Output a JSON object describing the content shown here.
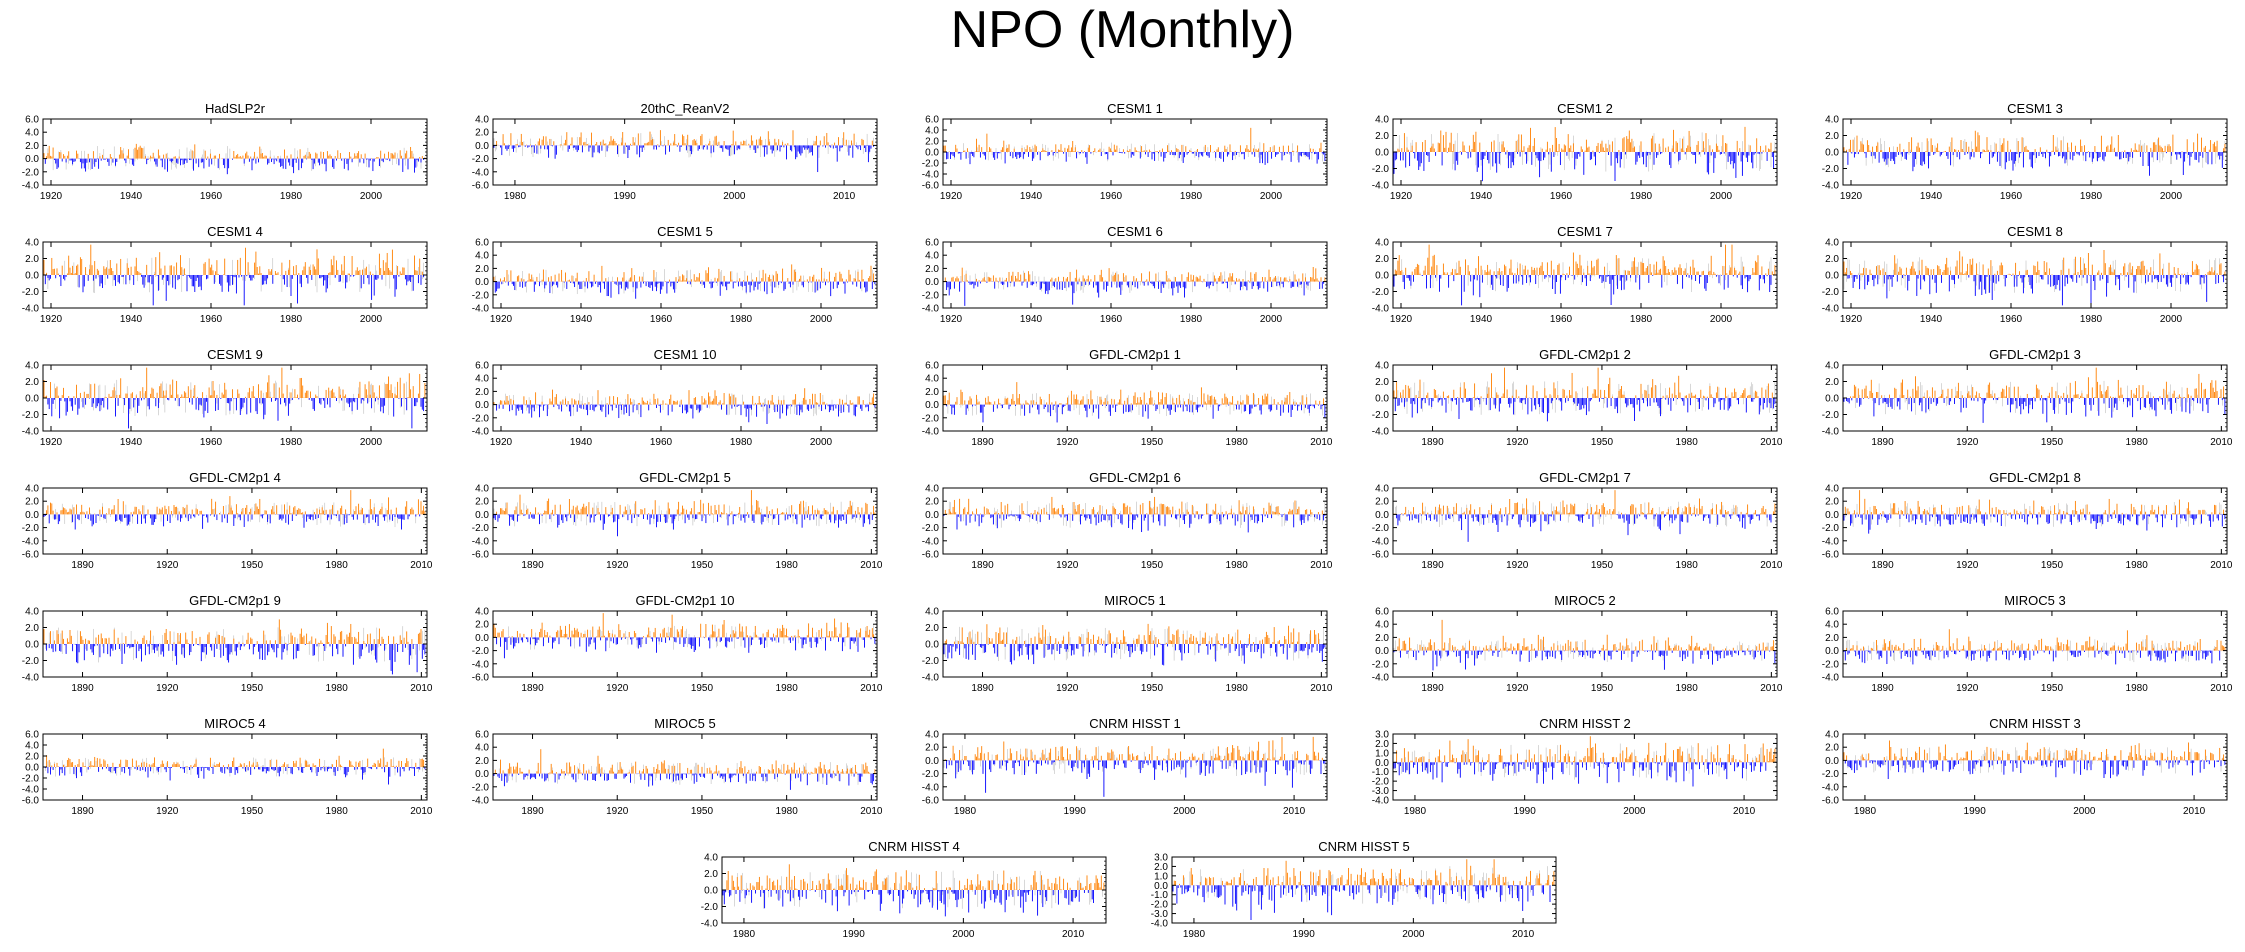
{
  "title": "NPO (Monthly)",
  "colors": {
    "positive": "#ff8000",
    "negative": "#0000ff",
    "noise": "#b0b0b0",
    "axis": "#000000"
  },
  "chart_data": [
    {
      "type": "bar",
      "title": "HadSLP2r",
      "ylim": [
        -4,
        6
      ],
      "yticks": [
        "6.0",
        "4.0",
        "2.0",
        "0.0",
        "-2.0",
        "-4.0"
      ],
      "xlim": [
        1918,
        2014
      ],
      "xticks": [
        1920,
        1940,
        1960,
        1980,
        2000
      ],
      "seed": 1,
      "amp": 1.2
    },
    {
      "type": "bar",
      "title": "20thC_ReanV2",
      "ylim": [
        -6,
        4
      ],
      "yticks": [
        "4.0",
        "2.0",
        "0.0",
        "-2.0",
        "-4.0",
        "-6.0"
      ],
      "xlim": [
        1978,
        2013
      ],
      "xticks": [
        1980,
        1990,
        2000,
        2010
      ],
      "seed": 2,
      "amp": 1.2
    },
    {
      "type": "bar",
      "title": "CESM1 1",
      "ylim": [
        -6,
        6
      ],
      "yticks": [
        "6.0",
        "4.0",
        "2.0",
        "0.0",
        "-2.0",
        "-4.0",
        "-6.0"
      ],
      "xlim": [
        1918,
        2014
      ],
      "xticks": [
        1920,
        1940,
        1960,
        1980,
        2000
      ],
      "seed": 3,
      "amp": 1.1
    },
    {
      "type": "bar",
      "title": "CESM1 2",
      "ylim": [
        -4,
        4
      ],
      "yticks": [
        "4.0",
        "2.0",
        "0.0",
        "-2.0",
        "-4.0"
      ],
      "xlim": [
        1918,
        2014
      ],
      "xticks": [
        1920,
        1940,
        1960,
        1980,
        2000
      ],
      "seed": 4,
      "amp": 1.5
    },
    {
      "type": "bar",
      "title": "CESM1 3",
      "ylim": [
        -4,
        4
      ],
      "yticks": [
        "4.0",
        "2.0",
        "0.0",
        "-2.0",
        "-4.0"
      ],
      "xlim": [
        1918,
        2014
      ],
      "xticks": [
        1920,
        1940,
        1960,
        1980,
        2000
      ],
      "seed": 5,
      "amp": 1.2
    },
    {
      "type": "bar",
      "title": "CESM1 4",
      "ylim": [
        -4,
        4
      ],
      "yticks": [
        "4.0",
        "2.0",
        "0.0",
        "-2.0",
        "-4.0"
      ],
      "xlim": [
        1918,
        2014
      ],
      "xticks": [
        1920,
        1940,
        1960,
        1980,
        2000
      ],
      "seed": 6,
      "amp": 1.4
    },
    {
      "type": "bar",
      "title": "CESM1 5",
      "ylim": [
        -4,
        6
      ],
      "yticks": [
        "6.0",
        "4.0",
        "2.0",
        "0.0",
        "-2.0",
        "-4.0"
      ],
      "xlim": [
        1918,
        2014
      ],
      "xticks": [
        1920,
        1940,
        1960,
        1980,
        2000
      ],
      "seed": 7,
      "amp": 1.2
    },
    {
      "type": "bar",
      "title": "CESM1 6",
      "ylim": [
        -4,
        6
      ],
      "yticks": [
        "6.0",
        "4.0",
        "2.0",
        "0.0",
        "-2.0",
        "-4.0"
      ],
      "xlim": [
        1918,
        2014
      ],
      "xticks": [
        1920,
        1940,
        1960,
        1980,
        2000
      ],
      "seed": 8,
      "amp": 1.1
    },
    {
      "type": "bar",
      "title": "CESM1 7",
      "ylim": [
        -4,
        4
      ],
      "yticks": [
        "4.0",
        "2.0",
        "0.0",
        "-2.0",
        "-4.0"
      ],
      "xlim": [
        1918,
        2014
      ],
      "xticks": [
        1920,
        1940,
        1960,
        1980,
        2000
      ],
      "seed": 9,
      "amp": 1.4
    },
    {
      "type": "bar",
      "title": "CESM1 8",
      "ylim": [
        -4,
        4
      ],
      "yticks": [
        "4.0",
        "2.0",
        "0.0",
        "-2.0",
        "-4.0"
      ],
      "xlim": [
        1918,
        2014
      ],
      "xticks": [
        1920,
        1940,
        1960,
        1980,
        2000
      ],
      "seed": 10,
      "amp": 1.4
    },
    {
      "type": "bar",
      "title": "CESM1 9",
      "ylim": [
        -4,
        4
      ],
      "yticks": [
        "4.0",
        "2.0",
        "0.0",
        "-2.0",
        "-4.0"
      ],
      "xlim": [
        1918,
        2014
      ],
      "xticks": [
        1920,
        1940,
        1960,
        1980,
        2000
      ],
      "seed": 11,
      "amp": 1.4
    },
    {
      "type": "bar",
      "title": "CESM1 10",
      "ylim": [
        -4,
        6
      ],
      "yticks": [
        "6.0",
        "4.0",
        "2.0",
        "0.0",
        "-2.0",
        "-4.0"
      ],
      "xlim": [
        1918,
        2014
      ],
      "xticks": [
        1920,
        1940,
        1960,
        1980,
        2000
      ],
      "seed": 12,
      "amp": 1.1
    },
    {
      "type": "bar",
      "title": "GFDL-CM2p1 1",
      "ylim": [
        -4,
        6
      ],
      "yticks": [
        "6.0",
        "4.0",
        "2.0",
        "0.0",
        "-2.0",
        "-4.0"
      ],
      "xlim": [
        1876,
        2012
      ],
      "xticks": [
        1890,
        1920,
        1950,
        1980,
        2010
      ],
      "seed": 13,
      "amp": 1.1
    },
    {
      "type": "bar",
      "title": "GFDL-CM2p1 2",
      "ylim": [
        -4,
        4
      ],
      "yticks": [
        "4.0",
        "2.0",
        "0.0",
        "-2.0",
        "-4.0"
      ],
      "xlim": [
        1876,
        2012
      ],
      "xticks": [
        1890,
        1920,
        1950,
        1980,
        2010
      ],
      "seed": 14,
      "amp": 1.3
    },
    {
      "type": "bar",
      "title": "GFDL-CM2p1 3",
      "ylim": [
        -4,
        4
      ],
      "yticks": [
        "4.0",
        "2.0",
        "0.0",
        "-2.0",
        "-4.0"
      ],
      "xlim": [
        1876,
        2012
      ],
      "xticks": [
        1890,
        1920,
        1950,
        1980,
        2010
      ],
      "seed": 15,
      "amp": 1.3
    },
    {
      "type": "bar",
      "title": "GFDL-CM2p1 4",
      "ylim": [
        -6,
        4
      ],
      "yticks": [
        "4.0",
        "2.0",
        "0.0",
        "-2.0",
        "-4.0",
        "-6.0"
      ],
      "xlim": [
        1876,
        2012
      ],
      "xticks": [
        1890,
        1920,
        1950,
        1980,
        2010
      ],
      "seed": 16,
      "amp": 1.2
    },
    {
      "type": "bar",
      "title": "GFDL-CM2p1 5",
      "ylim": [
        -6,
        4
      ],
      "yticks": [
        "4.0",
        "2.0",
        "0.0",
        "-2.0",
        "-4.0",
        "-6.0"
      ],
      "xlim": [
        1876,
        2012
      ],
      "xticks": [
        1890,
        1920,
        1950,
        1980,
        2010
      ],
      "seed": 17,
      "amp": 1.2
    },
    {
      "type": "bar",
      "title": "GFDL-CM2p1 6",
      "ylim": [
        -6,
        4
      ],
      "yticks": [
        "4.0",
        "2.0",
        "0.0",
        "-2.0",
        "-4.0",
        "-6.0"
      ],
      "xlim": [
        1876,
        2012
      ],
      "xticks": [
        1890,
        1920,
        1950,
        1980,
        2010
      ],
      "seed": 18,
      "amp": 1.3
    },
    {
      "type": "bar",
      "title": "GFDL-CM2p1 7",
      "ylim": [
        -6,
        4
      ],
      "yticks": [
        "4.0",
        "2.0",
        "0.0",
        "-2.0",
        "-4.0",
        "-6.0"
      ],
      "xlim": [
        1876,
        2012
      ],
      "xticks": [
        1890,
        1920,
        1950,
        1980,
        2010
      ],
      "seed": 19,
      "amp": 1.2
    },
    {
      "type": "bar",
      "title": "GFDL-CM2p1 8",
      "ylim": [
        -6,
        4
      ],
      "yticks": [
        "4.0",
        "2.0",
        "0.0",
        "-2.0",
        "-4.0",
        "-6.0"
      ],
      "xlim": [
        1876,
        2012
      ],
      "xticks": [
        1890,
        1920,
        1950,
        1980,
        2010
      ],
      "seed": 20,
      "amp": 1.2
    },
    {
      "type": "bar",
      "title": "GFDL-CM2p1 9",
      "ylim": [
        -4,
        4
      ],
      "yticks": [
        "4.0",
        "2.0",
        "0.0",
        "-2.0",
        "-4.0"
      ],
      "xlim": [
        1876,
        2012
      ],
      "xticks": [
        1890,
        1920,
        1950,
        1980,
        2010
      ],
      "seed": 21,
      "amp": 1.4
    },
    {
      "type": "bar",
      "title": "GFDL-CM2p1 10",
      "ylim": [
        -6,
        4
      ],
      "yticks": [
        "4.0",
        "2.0",
        "0.0",
        "-2.0",
        "-4.0",
        "-6.0"
      ],
      "xlim": [
        1876,
        2012
      ],
      "xticks": [
        1890,
        1920,
        1950,
        1980,
        2010
      ],
      "seed": 22,
      "amp": 1.2
    },
    {
      "type": "bar",
      "title": "MIROC5 1",
      "ylim": [
        -4,
        4
      ],
      "yticks": [
        "4.0",
        "2.0",
        "0.0",
        "-2.0",
        "-4.0"
      ],
      "xlim": [
        1876,
        2012
      ],
      "xticks": [
        1890,
        1920,
        1950,
        1980,
        2010
      ],
      "seed": 23,
      "amp": 1.3
    },
    {
      "type": "bar",
      "title": "MIROC5 2",
      "ylim": [
        -4,
        6
      ],
      "yticks": [
        "6.0",
        "4.0",
        "2.0",
        "0.0",
        "-2.0",
        "-4.0"
      ],
      "xlim": [
        1876,
        2012
      ],
      "xticks": [
        1890,
        1920,
        1950,
        1980,
        2010
      ],
      "seed": 24,
      "amp": 1.1
    },
    {
      "type": "bar",
      "title": "MIROC5 3",
      "ylim": [
        -4,
        6
      ],
      "yticks": [
        "6.0",
        "4.0",
        "2.0",
        "0.0",
        "-2.0",
        "-4.0"
      ],
      "xlim": [
        1876,
        2012
      ],
      "xticks": [
        1890,
        1920,
        1950,
        1980,
        2010
      ],
      "seed": 25,
      "amp": 1.1
    },
    {
      "type": "bar",
      "title": "MIROC5 4",
      "ylim": [
        -6,
        6
      ],
      "yticks": [
        "6.0",
        "4.0",
        "2.0",
        "0.0",
        "-2.0",
        "-4.0",
        "-6.0"
      ],
      "xlim": [
        1876,
        2012
      ],
      "xticks": [
        1890,
        1920,
        1950,
        1980,
        2010
      ],
      "seed": 26,
      "amp": 1.1
    },
    {
      "type": "bar",
      "title": "MIROC5 5",
      "ylim": [
        -4,
        6
      ],
      "yticks": [
        "6.0",
        "4.0",
        "2.0",
        "0.0",
        "-2.0",
        "-4.0"
      ],
      "xlim": [
        1876,
        2012
      ],
      "xticks": [
        1890,
        1920,
        1950,
        1980,
        2010
      ],
      "seed": 27,
      "amp": 1.1
    },
    {
      "type": "bar",
      "title": "CNRM HISST 1",
      "ylim": [
        -6,
        4
      ],
      "yticks": [
        "4.0",
        "2.0",
        "0.0",
        "-2.0",
        "-4.0",
        "-6.0"
      ],
      "xlim": [
        1978,
        2013
      ],
      "xticks": [
        1980,
        1990,
        2000,
        2010
      ],
      "seed": 28,
      "amp": 1.5
    },
    {
      "type": "bar",
      "title": "CNRM HISST 2",
      "ylim": [
        -4,
        3
      ],
      "yticks": [
        "3.0",
        "2.0",
        "1.0",
        "0.0",
        "-1.0",
        "-2.0",
        "-3.0",
        "-4.0"
      ],
      "xlim": [
        1978,
        2013
      ],
      "xticks": [
        1980,
        1990,
        2000,
        2010
      ],
      "seed": 29,
      "amp": 1.3
    },
    {
      "type": "bar",
      "title": "CNRM HISST 3",
      "ylim": [
        -6,
        4
      ],
      "yticks": [
        "4.0",
        "2.0",
        "0.0",
        "-2.0",
        "-4.0",
        "-6.0"
      ],
      "xlim": [
        1978,
        2013
      ],
      "xticks": [
        1980,
        1990,
        2000,
        2010
      ],
      "seed": 30,
      "amp": 1.3
    },
    {
      "type": "bar",
      "title": "CNRM HISST 4",
      "ylim": [
        -4,
        4
      ],
      "yticks": [
        "4.0",
        "2.0",
        "0.0",
        "-2.0",
        "-4.0"
      ],
      "xlim": [
        1978,
        2013
      ],
      "xticks": [
        1980,
        1990,
        2000,
        2010
      ],
      "seed": 31,
      "amp": 1.5
    },
    {
      "type": "bar",
      "title": "CNRM HISST 5",
      "ylim": [
        -4,
        3
      ],
      "yticks": [
        "3.0",
        "2.0",
        "1.0",
        "0.0",
        "-1.0",
        "-2.0",
        "-3.0",
        "-4.0"
      ],
      "xlim": [
        1978,
        2013
      ],
      "xticks": [
        1980,
        1990,
        2000,
        2010
      ],
      "seed": 32,
      "amp": 1.3
    }
  ]
}
